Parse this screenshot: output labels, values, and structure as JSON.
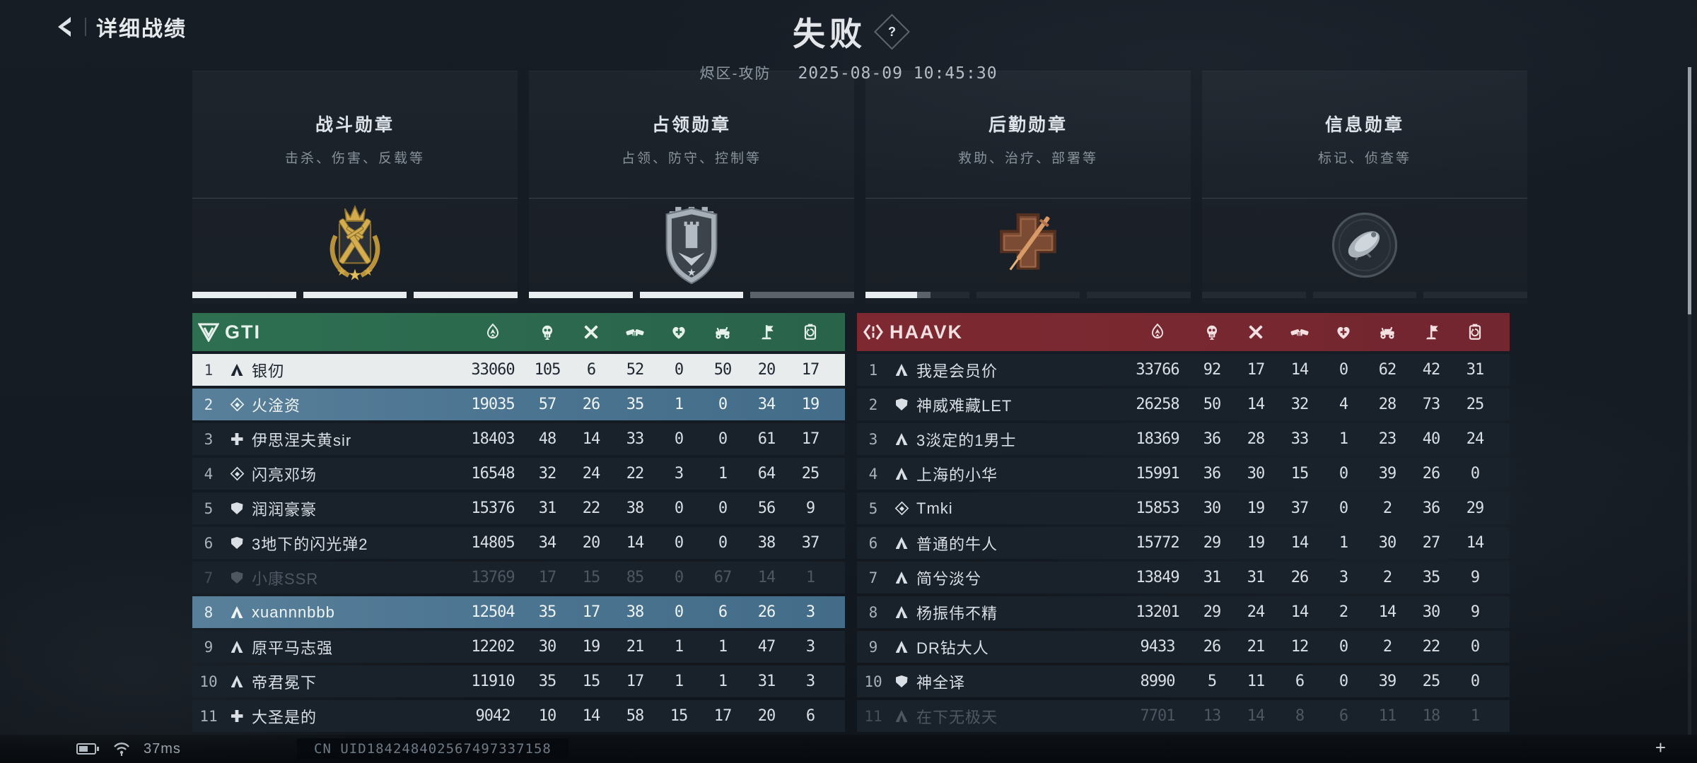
{
  "header": {
    "back_label": "详细战绩",
    "result": "失败",
    "help_glyph": "?",
    "mode": "烬区-攻防",
    "datetime": "2025-08-09 10:45:30"
  },
  "medals": [
    {
      "title": "战斗勋章",
      "desc": "击杀、伤害、反载等",
      "tier": "gold",
      "progress": [
        "full",
        "full",
        "full"
      ]
    },
    {
      "title": "占领勋章",
      "desc": "占领、防守、控制等",
      "tier": "silver",
      "progress": [
        "full",
        "full",
        "gray"
      ]
    },
    {
      "title": "后勤勋章",
      "desc": "救助、治疗、部署等",
      "tier": "bronze",
      "progress": [
        "partial",
        "empty",
        "empty"
      ]
    },
    {
      "title": "信息勋章",
      "desc": "标记、侦查等",
      "tier": "dark",
      "progress": [
        "empty",
        "empty",
        "empty"
      ]
    }
  ],
  "columns": [
    "score",
    "kills",
    "deaths",
    "assists",
    "revives",
    "vehicle",
    "captures",
    "supplies"
  ],
  "teams": [
    {
      "name": "GTI",
      "accent": "#2c6a4d",
      "players": [
        {
          "rank": 1,
          "class": "assault",
          "name": "银仞",
          "state": "top",
          "values": [
            33060,
            105,
            6,
            52,
            0,
            50,
            20,
            17
          ]
        },
        {
          "rank": 2,
          "class": "recon",
          "name": "火淦资",
          "state": "squad",
          "values": [
            19035,
            57,
            26,
            35,
            1,
            0,
            34,
            19
          ]
        },
        {
          "rank": 3,
          "class": "medic",
          "name": "伊思涅夫黄sir",
          "state": "normal",
          "values": [
            18403,
            48,
            14,
            33,
            0,
            0,
            61,
            17
          ]
        },
        {
          "rank": 4,
          "class": "recon",
          "name": "闪亮邓场",
          "state": "normal",
          "values": [
            16548,
            32,
            24,
            22,
            3,
            1,
            64,
            25
          ]
        },
        {
          "rank": 5,
          "class": "shield",
          "name": "润润豪豪",
          "state": "normal",
          "values": [
            15376,
            31,
            22,
            38,
            0,
            0,
            56,
            9
          ]
        },
        {
          "rank": 6,
          "class": "shield",
          "name": "3地下的闪光弹2",
          "state": "normal",
          "values": [
            14805,
            34,
            20,
            14,
            0,
            0,
            38,
            37
          ]
        },
        {
          "rank": 7,
          "class": "shield",
          "name": "小康SSR",
          "state": "dim",
          "values": [
            13769,
            17,
            15,
            85,
            0,
            67,
            14,
            1
          ]
        },
        {
          "rank": 8,
          "class": "assault",
          "name": "xuannnbbb",
          "state": "squad",
          "values": [
            12504,
            35,
            17,
            38,
            0,
            6,
            26,
            3
          ]
        },
        {
          "rank": 9,
          "class": "assault",
          "name": "原平马志强",
          "state": "normal",
          "values": [
            12202,
            30,
            19,
            21,
            1,
            1,
            47,
            3
          ]
        },
        {
          "rank": 10,
          "class": "assault",
          "name": "帝君冕下",
          "state": "normal",
          "values": [
            11910,
            35,
            15,
            17,
            1,
            1,
            31,
            3
          ]
        },
        {
          "rank": 11,
          "class": "medic",
          "name": "大圣是的",
          "state": "normal",
          "values": [
            9042,
            10,
            14,
            58,
            15,
            17,
            20,
            6
          ]
        }
      ]
    },
    {
      "name": "HAAVK",
      "accent": "#7a2830",
      "players": [
        {
          "rank": 1,
          "class": "assault",
          "name": "我是会员价",
          "state": "normal",
          "values": [
            33766,
            92,
            17,
            14,
            0,
            62,
            42,
            31
          ]
        },
        {
          "rank": 2,
          "class": "shield",
          "name": "神威难藏LET",
          "state": "normal",
          "values": [
            26258,
            50,
            14,
            32,
            4,
            28,
            73,
            25
          ]
        },
        {
          "rank": 3,
          "class": "assault",
          "name": "3淡定的1男士",
          "state": "normal",
          "values": [
            18369,
            36,
            28,
            33,
            1,
            23,
            40,
            24
          ]
        },
        {
          "rank": 4,
          "class": "assault",
          "name": "上海的小华",
          "state": "normal",
          "values": [
            15991,
            36,
            30,
            15,
            0,
            39,
            26,
            0
          ]
        },
        {
          "rank": 5,
          "class": "recon",
          "name": "Tmki",
          "state": "normal",
          "values": [
            15853,
            30,
            19,
            37,
            0,
            2,
            36,
            29
          ]
        },
        {
          "rank": 6,
          "class": "assault",
          "name": "普通的牛人",
          "state": "normal",
          "values": [
            15772,
            29,
            19,
            14,
            1,
            30,
            27,
            14
          ]
        },
        {
          "rank": 7,
          "class": "assault",
          "name": "简兮淡兮",
          "state": "normal",
          "values": [
            13849,
            31,
            31,
            26,
            3,
            2,
            35,
            9
          ]
        },
        {
          "rank": 8,
          "class": "assault",
          "name": "杨振伟不精",
          "state": "normal",
          "values": [
            13201,
            29,
            24,
            14,
            2,
            14,
            30,
            9
          ]
        },
        {
          "rank": 9,
          "class": "assault",
          "name": "DR钻大人",
          "state": "normal",
          "values": [
            9433,
            26,
            21,
            12,
            0,
            2,
            22,
            0
          ]
        },
        {
          "rank": 10,
          "class": "shield",
          "name": "神全译",
          "state": "normal",
          "values": [
            8990,
            5,
            11,
            6,
            0,
            39,
            25,
            0
          ]
        },
        {
          "rank": 11,
          "class": "assault",
          "name": "在下无极天",
          "state": "dim",
          "values": [
            7701,
            13,
            14,
            8,
            6,
            11,
            18,
            1
          ]
        }
      ]
    }
  ],
  "footer": {
    "ping": "37ms",
    "uid": "CN UID184248402567497337158"
  }
}
